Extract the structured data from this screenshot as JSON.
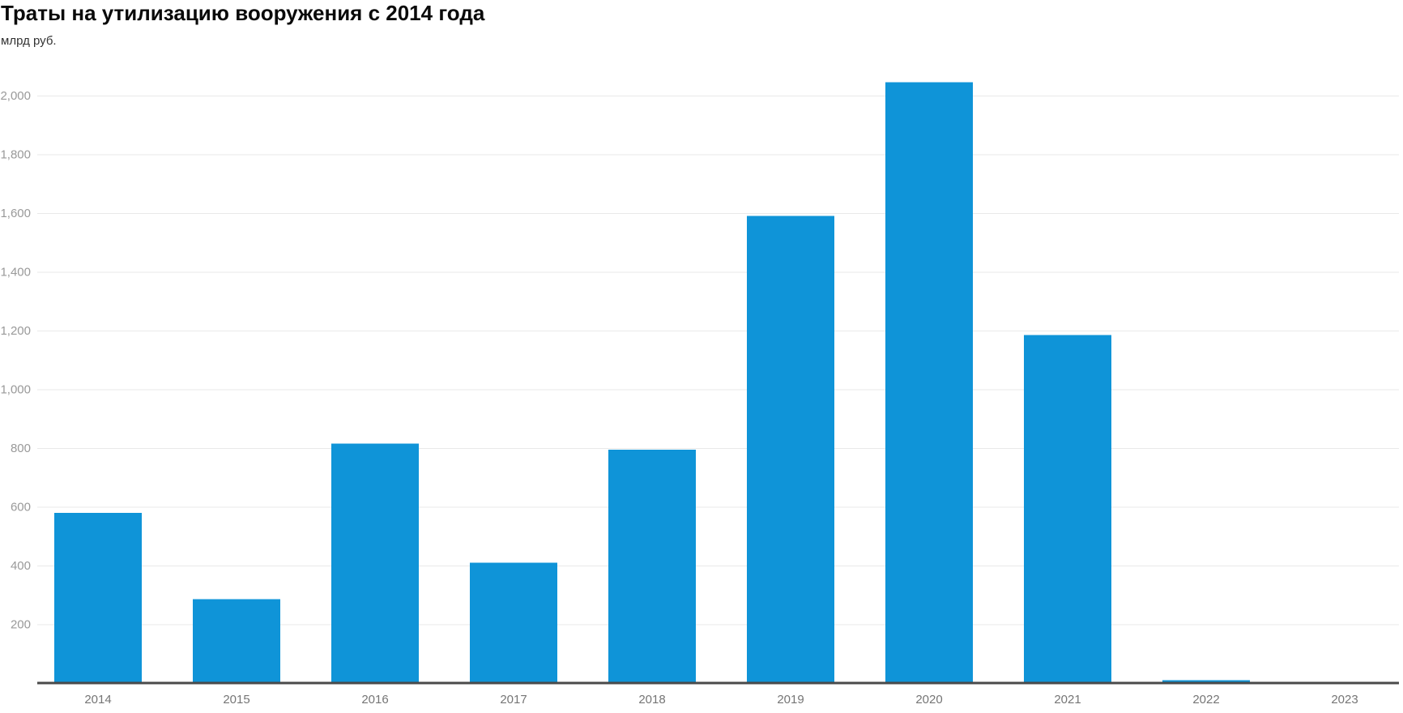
{
  "page": {
    "background": "#ffffff"
  },
  "chart_data": {
    "type": "bar",
    "title": "Траты на утилизацию вооружения с 2014 года",
    "subtitle": "млрд руб.",
    "unit": "млрд руб.",
    "categories": [
      "2014",
      "2015",
      "2016",
      "2017",
      "2018",
      "2019",
      "2020",
      "2021",
      "2022",
      "2023"
    ],
    "values": [
      580,
      285,
      815,
      410,
      795,
      1590,
      2045,
      1185,
      10,
      0
    ],
    "xlabel": "",
    "ylabel": "млрд руб.",
    "ylim": [
      0,
      2100
    ],
    "yticks": [
      200,
      400,
      600,
      800,
      1000,
      1200,
      1400,
      1600,
      1800,
      2000
    ],
    "ytick_labels": [
      "200",
      "400",
      "600",
      "800",
      "1,000",
      "1,200",
      "1,400",
      "1,600",
      "1,800",
      "2,000"
    ],
    "grid": true,
    "legend_position": "none",
    "bar_color": "#0f94d8",
    "colors": {
      "bar": "#0f94d8",
      "gridline": "#e9e9e9",
      "axis_line": "#4a4a4a",
      "ytick_text": "#999999",
      "xtick_text": "#757575",
      "title_text": "#0a0a0a",
      "subtitle_text": "#333333"
    }
  }
}
